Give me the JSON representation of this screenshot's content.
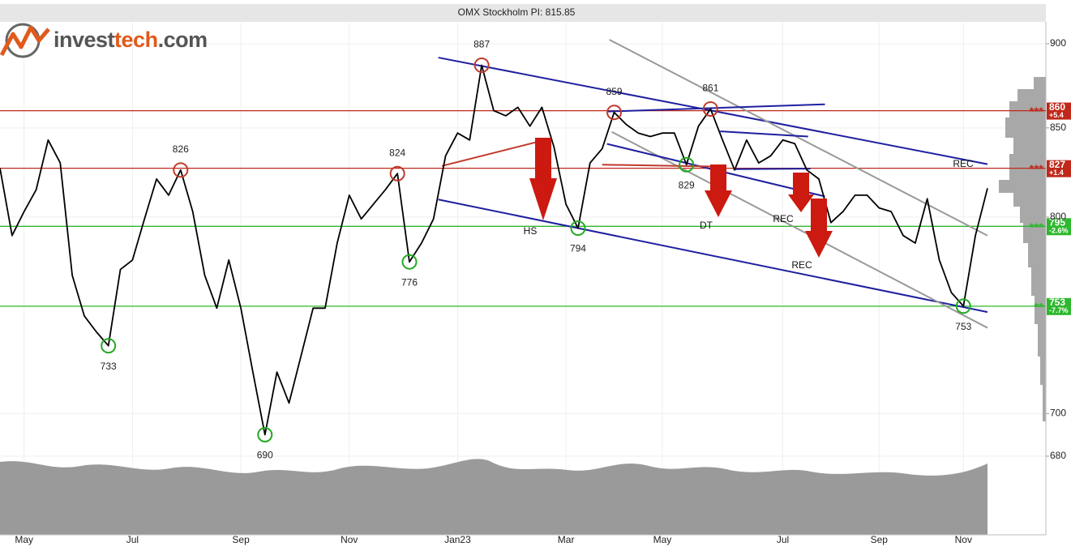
{
  "logo": [
    "invest",
    "tech",
    ".com"
  ],
  "chart_data": {
    "type": "line",
    "title": "OMX Stockholm PI: 815.85",
    "log_scale": true,
    "grid": true,
    "color": "#000000",
    "categories": [
      null,
      null,
      "May",
      null,
      null,
      null,
      null,
      null,
      null,
      null,
      null,
      "Jul",
      null,
      null,
      null,
      null,
      null,
      null,
      null,
      null,
      "Sep",
      null,
      null,
      null,
      null,
      null,
      null,
      null,
      null,
      "Nov",
      null,
      null,
      null,
      null,
      null,
      null,
      null,
      null,
      "Jan23",
      null,
      null,
      null,
      null,
      null,
      null,
      null,
      null,
      "Mar",
      null,
      null,
      null,
      null,
      null,
      null,
      null,
      "May",
      null,
      null,
      null,
      null,
      null,
      null,
      null,
      null,
      null,
      "Jul",
      null,
      null,
      null,
      null,
      null,
      null,
      null,
      "Sep",
      null,
      null,
      null,
      null,
      null,
      null,
      "Nov",
      null,
      null
    ],
    "values": [
      827,
      790,
      803,
      815,
      843,
      830,
      769,
      748,
      740,
      733,
      772,
      777,
      799,
      821,
      812,
      826,
      803,
      769,
      752,
      777,
      752,
      720,
      690,
      720,
      705,
      728,
      752,
      752,
      786,
      812,
      799,
      807,
      815,
      824,
      776,
      786,
      799,
      834,
      847,
      843,
      887,
      860,
      857,
      862,
      851,
      862,
      839,
      807,
      794,
      830,
      838,
      859,
      852,
      847,
      845,
      847,
      847,
      829,
      851,
      861,
      843,
      826,
      843,
      830,
      834,
      843,
      841,
      826,
      821,
      797,
      803,
      812,
      812,
      805,
      803,
      790,
      786,
      810,
      777,
      760,
      753,
      790,
      815.85
    ],
    "ylim": [
      680,
      913
    ],
    "yticks": [
      680,
      700,
      800,
      850,
      900
    ],
    "levels": [
      {
        "value": 860,
        "change": "+5.4",
        "stars": "***",
        "color": "#c0281a"
      },
      {
        "value": 827,
        "change": "+1.4",
        "stars": "***",
        "color": "#c0281a"
      },
      {
        "value": 795,
        "change": "-2.6%",
        "stars": "***",
        "color": "#2db82d"
      },
      {
        "value": 753,
        "change": "-7.7%",
        "stars": "**",
        "color": "#2db82d"
      }
    ],
    "extremes": [
      {
        "x": 9,
        "value": 733,
        "color": "#22aa22",
        "position": "below"
      },
      {
        "x": 15,
        "value": 826,
        "color": "#c0392b",
        "position": "above"
      },
      {
        "x": 22,
        "value": 690,
        "color": "#22aa22",
        "position": "below"
      },
      {
        "x": 33,
        "value": 824,
        "color": "#c0392b",
        "position": "above"
      },
      {
        "x": 34,
        "value": 776,
        "color": "#22aa22",
        "position": "below"
      },
      {
        "x": 40,
        "value": 887,
        "color": "#c0392b",
        "position": "above"
      },
      {
        "x": 48,
        "value": 794,
        "color": "#22aa22",
        "position": "below"
      },
      {
        "x": 51,
        "value": 859,
        "color": "#c0392b",
        "position": "above"
      },
      {
        "x": 57,
        "value": 829,
        "color": "#22aa22",
        "position": "below"
      },
      {
        "x": 59,
        "value": 861,
        "color": "#c0392b",
        "position": "above"
      },
      {
        "x": 80,
        "value": 753,
        "color": "#22aa22",
        "position": "below"
      }
    ],
    "trend_lines": [
      {
        "color": "#1f1fa0",
        "from": [
          36.4,
          891.6
        ],
        "to": [
          82,
          829.3
        ]
      },
      {
        "color": "#1f1fa0",
        "from": [
          36.4,
          809.6
        ],
        "to": [
          82,
          750
        ]
      },
      {
        "color": "#999999",
        "from": [
          50.6,
          902.5
        ],
        "to": [
          82,
          790
        ]
      },
      {
        "color": "#999999",
        "from": [
          50.8,
          847.7
        ],
        "to": [
          82,
          742
        ]
      },
      {
        "color": "#1f1fa0",
        "from": [
          50.4,
          859.5
        ],
        "to": [
          68.5,
          863.7
        ]
      },
      {
        "color": "#1f1fa0",
        "from": [
          59.8,
          848
        ],
        "to": [
          67.1,
          845
        ]
      },
      {
        "color": "#1f1fa0",
        "from": [
          50.4,
          840.8
        ],
        "to": [
          68.5,
          811.3
        ]
      },
      {
        "color": "#1f1fa0",
        "from": [
          60.9,
          826.5
        ],
        "to": [
          67.3,
          826.8
        ]
      },
      {
        "color": "#c0392b",
        "from": [
          36.7,
          828.3
        ],
        "to": [
          45,
          842.6
        ]
      },
      {
        "color": "#c0392b",
        "from": [
          50,
          829
        ],
        "to": [
          59.2,
          828
        ]
      }
    ],
    "patterns": [
      "HS",
      "DT",
      "REC",
      "REC",
      "REC"
    ]
  }
}
